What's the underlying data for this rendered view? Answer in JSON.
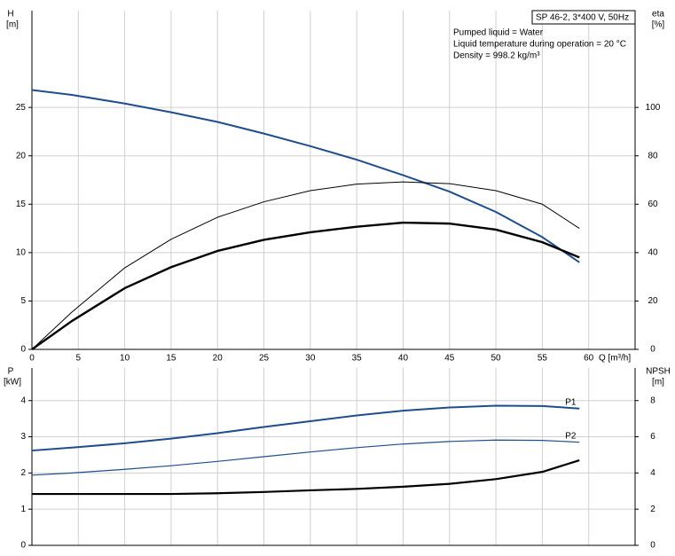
{
  "chart_data": [
    {
      "type": "line",
      "box_title": "SP 46-2, 3*400 V, 50Hz",
      "annotations": [
        "Pumped liquid = Water",
        "Liquid temperature during operation = 20 °C",
        "Density = 998.2 kg/m³"
      ],
      "y_label": "H",
      "y_unit": "[m]",
      "y2_label": "eta",
      "y2_unit": "[%]",
      "x_label": "Q [m³/h]",
      "x": [
        0,
        4.3,
        10,
        15,
        20,
        25,
        30,
        35,
        40,
        45,
        50,
        55,
        59
      ],
      "xlim": [
        0,
        65
      ],
      "xticks": [
        0,
        5,
        10,
        15,
        20,
        25,
        30,
        35,
        40,
        45,
        50,
        55,
        60
      ],
      "show_xtick_labels": true,
      "ylim": [
        0,
        35
      ],
      "yticks": [
        0,
        5,
        10,
        15,
        20,
        25
      ],
      "y2lim": [
        0,
        140
      ],
      "y2ticks": [
        0,
        20,
        40,
        60,
        80,
        100
      ],
      "grid": true,
      "series": [
        {
          "color": "#1f4e8c",
          "line_width": 2,
          "values": [
            26.8,
            26.3,
            25.4,
            24.5,
            23.5,
            22.3,
            21.0,
            19.6,
            18.0,
            16.3,
            14.2,
            11.6,
            9.0
          ]
        },
        {
          "color": "#000000",
          "line_width": 1,
          "axis": "y2",
          "values": [
            0,
            15.4,
            33.7,
            45.5,
            54.6,
            61,
            65.6,
            68.3,
            69.2,
            68.5,
            65.6,
            60,
            50
          ]
        },
        {
          "color": "#000000",
          "line_width": 2.4,
          "axis": "y2",
          "values": [
            0,
            11.7,
            25.3,
            34,
            40.7,
            45.3,
            48.4,
            50.7,
            52.4,
            52,
            49.5,
            44.3,
            38
          ]
        }
      ]
    },
    {
      "type": "line",
      "y_label": "P",
      "y_unit": "[kW]",
      "y2_label": "NPSH",
      "y2_unit": "[m]",
      "x": [
        0,
        4.3,
        10,
        15,
        20,
        25,
        30,
        35,
        40,
        45,
        50,
        55,
        59
      ],
      "xlim": [
        0,
        65
      ],
      "xticks": [
        0,
        5,
        10,
        15,
        20,
        25,
        30,
        35,
        40,
        45,
        50,
        55,
        60
      ],
      "show_xtick_labels": false,
      "ylim": [
        0,
        4.9
      ],
      "yticks": [
        0,
        1,
        2,
        3,
        4
      ],
      "y2lim": [
        0,
        9.8
      ],
      "y2ticks": [
        0,
        2,
        4,
        6,
        8
      ],
      "grid": true,
      "series": [
        {
          "name": "P1",
          "color": "#1f4e8c",
          "line_width": 2,
          "values": [
            2.62,
            2.7,
            2.82,
            2.95,
            3.1,
            3.27,
            3.43,
            3.59,
            3.72,
            3.81,
            3.86,
            3.85,
            3.78
          ]
        },
        {
          "name": "P2",
          "color": "#1f4e8c",
          "line_width": 1.2,
          "values": [
            1.94,
            2.0,
            2.1,
            2.2,
            2.32,
            2.45,
            2.58,
            2.7,
            2.8,
            2.87,
            2.91,
            2.9,
            2.85
          ]
        },
        {
          "color": "#000000",
          "line_width": 2.2,
          "axis": "y2",
          "values": [
            2.84,
            2.84,
            2.84,
            2.84,
            2.88,
            2.95,
            3.04,
            3.12,
            3.24,
            3.4,
            3.66,
            4.06,
            4.7
          ]
        }
      ]
    }
  ]
}
